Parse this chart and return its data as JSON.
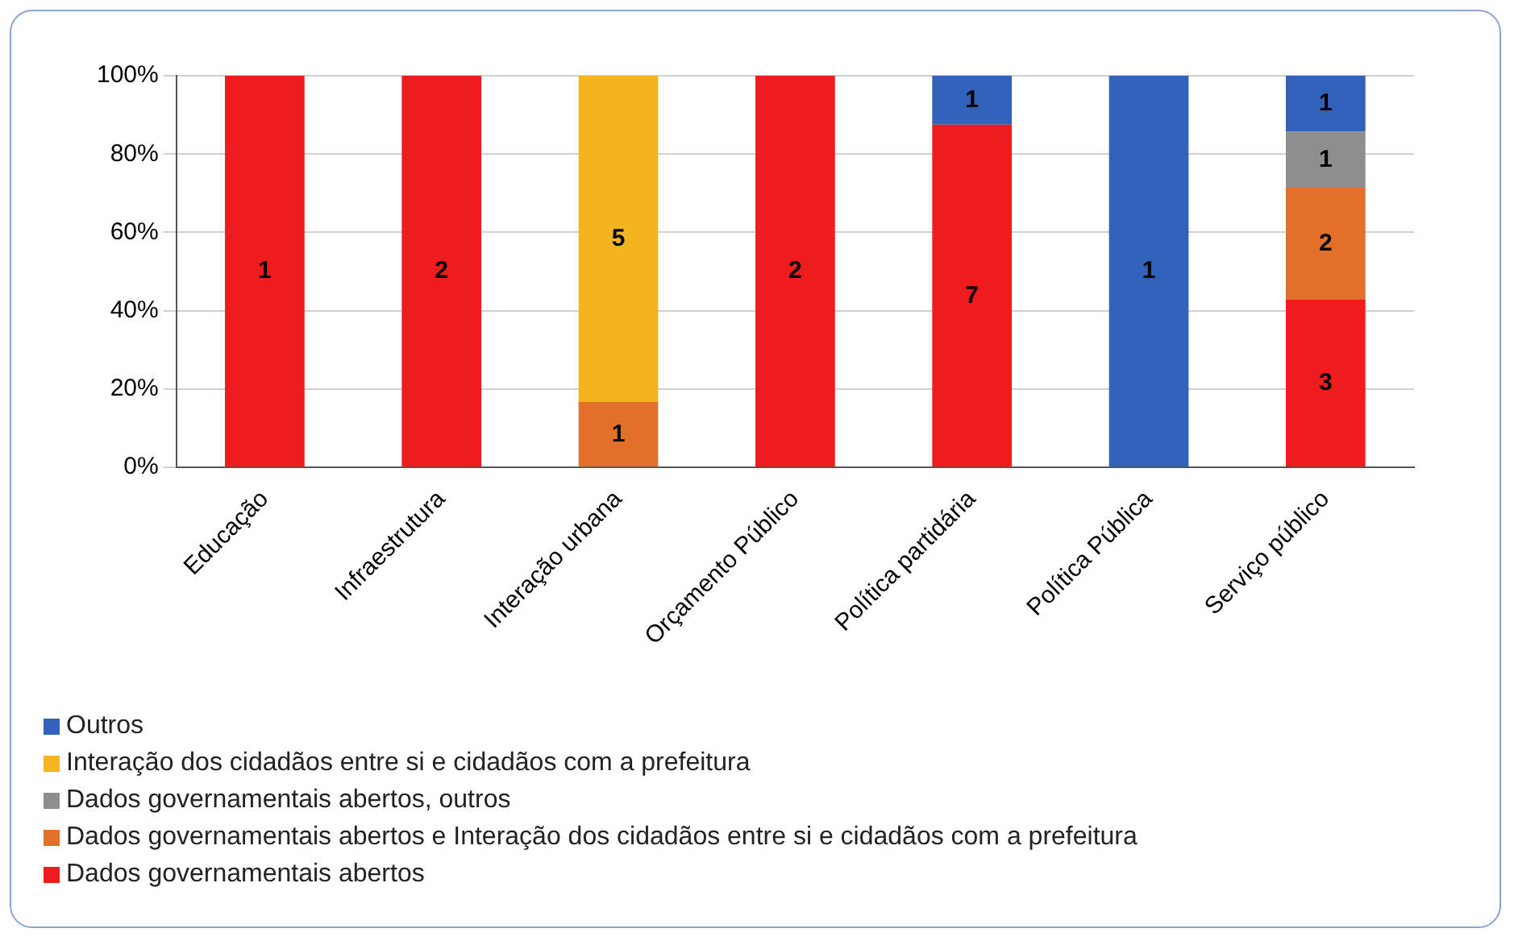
{
  "chart_data": {
    "type": "bar",
    "stacked": true,
    "categories": [
      "Educação",
      "Infraestrutura",
      "Interação urbana",
      "Orçamento Público",
      "Política partidária",
      "Política Pública",
      "Serviço público"
    ],
    "series": [
      {
        "name": "Dados governamentais abertos",
        "color": "#ee1c1c",
        "values": [
          100,
          100,
          null,
          100,
          87.5,
          null,
          42.8
        ]
      },
      {
        "name": "Dados governamentais abertos e Interação dos cidadãos entre si e cidadãos com a prefeitura",
        "color": "#e2702a",
        "values": [
          null,
          null,
          16.7,
          null,
          null,
          null,
          28.6
        ]
      },
      {
        "name": "Dados governamentais abertos, outros",
        "color": "#8e8e8e",
        "values": [
          null,
          null,
          null,
          null,
          null,
          null,
          14.3
        ]
      },
      {
        "name": "Interação dos cidadãos entre si e cidadãos com a prefeitura",
        "color": "#f4b41e",
        "values": [
          null,
          null,
          83.3,
          null,
          null,
          null,
          null
        ]
      },
      {
        "name": "Outros",
        "color": "#2f62b8",
        "values": [
          null,
          null,
          null,
          null,
          12.5,
          100,
          14.3
        ]
      }
    ],
    "annotations": [
      "1",
      "2",
      "1",
      "5",
      "2",
      "7",
      "1",
      "1",
      "3",
      "2",
      "1",
      "1"
    ],
    "ylim": [
      0,
      100
    ],
    "yticks": [
      {
        "value": 0,
        "label": "0%"
      },
      {
        "value": 20,
        "label": "20%"
      },
      {
        "value": 40,
        "label": "40%"
      },
      {
        "value": 60,
        "label": "60%"
      },
      {
        "value": 80,
        "label": "80%"
      },
      {
        "value": 100,
        "label": "100%"
      }
    ],
    "grid": "y",
    "legend": "bottom"
  }
}
